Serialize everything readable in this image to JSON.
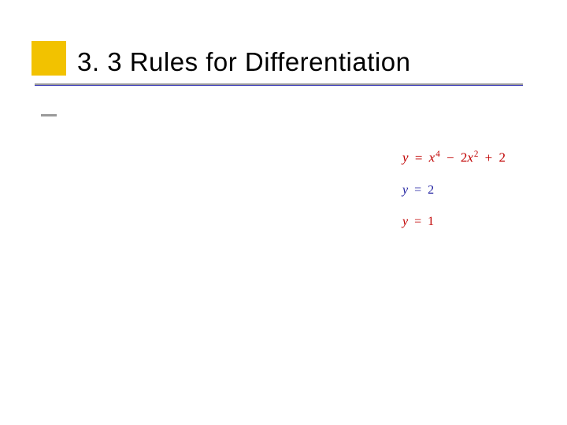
{
  "slide": {
    "title": "3. 3 Rules for Differentiation",
    "title_color": "#000000",
    "title_fontsize": 33,
    "accent_square_color": "#f2c200",
    "underline_top_color": "#9a9a9a",
    "underline_bottom_color": "#3a3ab8",
    "bullet_dash_color": "#9a9a9a",
    "background_color": "#ffffff"
  },
  "equations": {
    "eq1": {
      "y": "y",
      "eq": "=",
      "term1_base": "x",
      "term1_exp": "4",
      "op1": "−",
      "term2_coef": "2",
      "term2_base": "x",
      "term2_exp": "2",
      "op2": "+",
      "term3": "2",
      "color": "#c00000",
      "fontsize": 17
    },
    "eq2": {
      "y": "y",
      "eq": "=",
      "rhs": "2",
      "color": "#2020a0",
      "fontsize": 16
    },
    "eq3": {
      "y": "y",
      "eq": "=",
      "rhs": "1",
      "color": "#c00000",
      "fontsize": 16
    }
  }
}
